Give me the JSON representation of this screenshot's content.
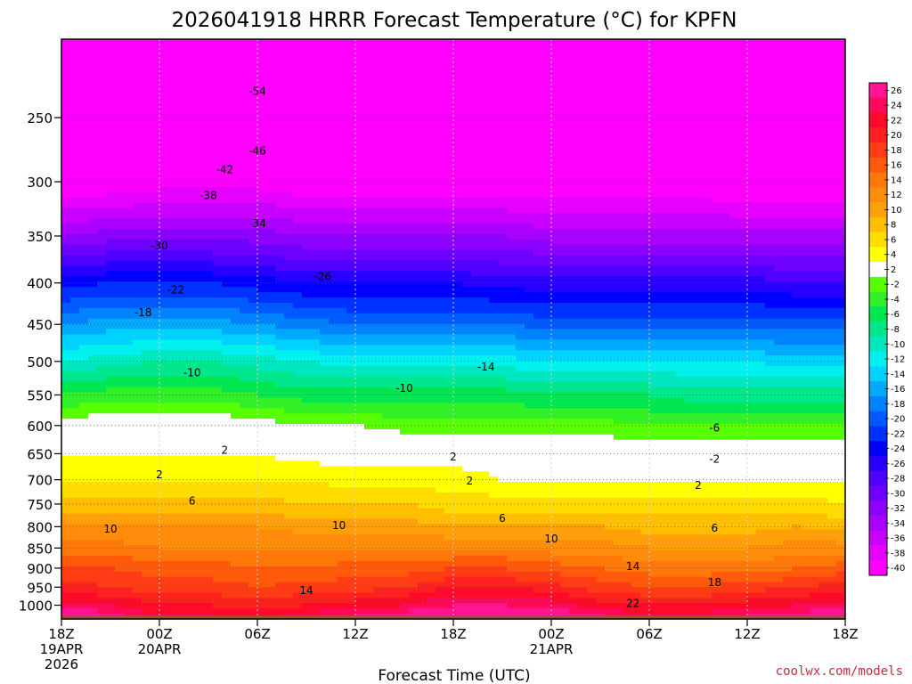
{
  "chart_data": {
    "type": "heatmap",
    "title": "2026041918 HRRR Forecast Temperature (°C) for KPFN",
    "xlabel": "Forecast Time (UTC)",
    "ylabel": "",
    "credit": "coolwx.com/models",
    "x_hours": [
      0,
      6,
      12,
      18,
      24,
      30,
      36,
      42,
      48
    ],
    "x_ticks": [
      {
        "hour": 0,
        "lines": [
          "18Z",
          "19APR",
          "2026"
        ]
      },
      {
        "hour": 6,
        "lines": [
          "00Z",
          "20APR"
        ]
      },
      {
        "hour": 12,
        "lines": [
          "06Z"
        ]
      },
      {
        "hour": 18,
        "lines": [
          "12Z"
        ]
      },
      {
        "hour": 24,
        "lines": [
          "18Z"
        ]
      },
      {
        "hour": 30,
        "lines": [
          "00Z",
          "21APR"
        ]
      },
      {
        "hour": 36,
        "lines": [
          "06Z"
        ]
      },
      {
        "hour": 42,
        "lines": [
          "12Z"
        ]
      },
      {
        "hour": 48,
        "lines": [
          "18Z"
        ]
      }
    ],
    "y_ticks": [
      250,
      300,
      350,
      400,
      450,
      500,
      550,
      600,
      650,
      700,
      750,
      800,
      850,
      900,
      950,
      1000
    ],
    "y_range_hpa": [
      200,
      1040
    ],
    "surface_hpa": 1030,
    "profile_levels_hpa": [
      200,
      250,
      300,
      350,
      400,
      450,
      500,
      550,
      600,
      650,
      700,
      750,
      800,
      850,
      900,
      950,
      1000,
      1030
    ],
    "profiles": [
      {
        "hour": 0,
        "temps": [
          -58,
          -49,
          -42,
          -34,
          -25,
          -18,
          -12,
          -6,
          -1,
          2,
          4,
          7,
          10,
          13,
          16,
          19,
          23,
          26
        ]
      },
      {
        "hour": 3,
        "temps": [
          -58,
          -49,
          -42,
          -33,
          -24,
          -17,
          -11,
          -5,
          0,
          2,
          4,
          7,
          10,
          13,
          16,
          18,
          22,
          25
        ]
      },
      {
        "hour": 6,
        "temps": [
          -58,
          -49,
          -41,
          -33,
          -24,
          -17,
          -10,
          -5,
          0,
          2,
          4,
          7,
          10,
          12,
          15,
          17,
          20,
          22
        ]
      },
      {
        "hour": 9,
        "temps": [
          -58,
          -49,
          -41,
          -33,
          -24,
          -17,
          -10,
          -5,
          0,
          2,
          4,
          7,
          10,
          12,
          15,
          17,
          20,
          22
        ]
      },
      {
        "hour": 12,
        "temps": [
          -57,
          -49,
          -41,
          -33,
          -25,
          -18,
          -11,
          -6,
          -1,
          2,
          4,
          7,
          10,
          12,
          14,
          16,
          19,
          21
        ]
      },
      {
        "hour": 15,
        "temps": [
          -57,
          -49,
          -42,
          -34,
          -26,
          -19,
          -12,
          -7,
          -2,
          1,
          4,
          6,
          9,
          12,
          14,
          17,
          20,
          23
        ]
      },
      {
        "hour": 18,
        "temps": [
          -57,
          -49,
          -42,
          -34,
          -26,
          -20,
          -13,
          -7,
          -2,
          1,
          3,
          6,
          9,
          12,
          15,
          17,
          21,
          24
        ]
      },
      {
        "hour": 21,
        "temps": [
          -57,
          -49,
          -42,
          -34,
          -26,
          -20,
          -13,
          -7,
          -3,
          1,
          3,
          6,
          9,
          12,
          15,
          18,
          22,
          25
        ]
      },
      {
        "hour": 24,
        "temps": [
          -57,
          -49,
          -42,
          -34,
          -26,
          -20,
          -13,
          -7,
          -3,
          1,
          3,
          5,
          8,
          12,
          16,
          20,
          24,
          27
        ]
      },
      {
        "hour": 27,
        "temps": [
          -57,
          -49,
          -42,
          -34,
          -27,
          -20,
          -13,
          -7,
          -3,
          1,
          2,
          5,
          8,
          12,
          16,
          20,
          24,
          27
        ]
      },
      {
        "hour": 30,
        "temps": [
          -57,
          -49,
          -42,
          -35,
          -27,
          -21,
          -14,
          -8,
          -3,
          0,
          2,
          5,
          8,
          11,
          15,
          19,
          23,
          26
        ]
      },
      {
        "hour": 33,
        "temps": [
          -58,
          -50,
          -42,
          -35,
          -27,
          -21,
          -14,
          -8,
          -3,
          0,
          2,
          5,
          8,
          11,
          14,
          17,
          21,
          24
        ]
      },
      {
        "hour": 36,
        "temps": [
          -58,
          -50,
          -42,
          -35,
          -27,
          -21,
          -14,
          -8,
          -4,
          0,
          2,
          5,
          7,
          10,
          13,
          16,
          20,
          22
        ]
      },
      {
        "hour": 39,
        "temps": [
          -58,
          -50,
          -42,
          -35,
          -27,
          -21,
          -14,
          -9,
          -4,
          0,
          2,
          5,
          7,
          10,
          13,
          16,
          20,
          23
        ]
      },
      {
        "hour": 42,
        "temps": [
          -58,
          -50,
          -43,
          -35,
          -27,
          -21,
          -14,
          -9,
          -4,
          0,
          2,
          5,
          7,
          10,
          13,
          17,
          21,
          24
        ]
      },
      {
        "hour": 45,
        "temps": [
          -58,
          -50,
          -43,
          -35,
          -28,
          -21,
          -15,
          -9,
          -4,
          0,
          2,
          5,
          8,
          11,
          14,
          18,
          22,
          25
        ]
      },
      {
        "hour": 48,
        "temps": [
          -58,
          -50,
          -43,
          -35,
          -28,
          -21,
          -15,
          -9,
          -4,
          0,
          2,
          4,
          7,
          11,
          15,
          19,
          23,
          26
        ]
      }
    ],
    "contour_labels": [
      {
        "text": "-54",
        "hour": 12,
        "hpa": 232
      },
      {
        "text": "-46",
        "hour": 12,
        "hpa": 275
      },
      {
        "text": "-42",
        "hour": 10,
        "hpa": 290
      },
      {
        "text": "-38",
        "hour": 9,
        "hpa": 312
      },
      {
        "text": "-34",
        "hour": 12,
        "hpa": 338
      },
      {
        "text": "-30",
        "hour": 6,
        "hpa": 360
      },
      {
        "text": "-26",
        "hour": 16,
        "hpa": 393
      },
      {
        "text": "-22",
        "hour": 7,
        "hpa": 408
      },
      {
        "text": "-18",
        "hour": 5,
        "hpa": 435
      },
      {
        "text": "-14",
        "hour": 26,
        "hpa": 508
      },
      {
        "text": "-10",
        "hour": 8,
        "hpa": 516
      },
      {
        "text": "-10",
        "hour": 21,
        "hpa": 540
      },
      {
        "text": "-6",
        "hour": 40,
        "hpa": 604
      },
      {
        "text": "-2",
        "hour": 40,
        "hpa": 660
      },
      {
        "text": "2",
        "hour": 10,
        "hpa": 644
      },
      {
        "text": "2",
        "hour": 24,
        "hpa": 656
      },
      {
        "text": "2",
        "hour": 6,
        "hpa": 690
      },
      {
        "text": "2",
        "hour": 25,
        "hpa": 702
      },
      {
        "text": "2",
        "hour": 39,
        "hpa": 711
      },
      {
        "text": "6",
        "hour": 8,
        "hpa": 744
      },
      {
        "text": "6",
        "hour": 27,
        "hpa": 781
      },
      {
        "text": "6",
        "hour": 40,
        "hpa": 803
      },
      {
        "text": "10",
        "hour": 3,
        "hpa": 805
      },
      {
        "text": "10",
        "hour": 17,
        "hpa": 797
      },
      {
        "text": "10",
        "hour": 30,
        "hpa": 828
      },
      {
        "text": "14",
        "hour": 15,
        "hpa": 959
      },
      {
        "text": "14",
        "hour": 35,
        "hpa": 896
      },
      {
        "text": "18",
        "hour": 40,
        "hpa": 938
      },
      {
        "text": "22",
        "hour": 35,
        "hpa": 995
      }
    ],
    "legend": {
      "placement": "right",
      "labels": [
        "26",
        "24",
        "22",
        "20",
        "18",
        "16",
        "14",
        "12",
        "10",
        "8",
        "6",
        "4",
        "2",
        "-2",
        "-4",
        "-6",
        "-8",
        "-10",
        "-12",
        "-14",
        "-16",
        "-18",
        "-20",
        "-22",
        "-24",
        "-26",
        "-28",
        "-30",
        "-32",
        "-34",
        "-36",
        "-38",
        "-40"
      ],
      "colors": [
        "#ff1493",
        "#ff0a5a",
        "#ff0a28",
        "#ff2020",
        "#ff3c14",
        "#ff5a0a",
        "#ff780a",
        "#ff8c0a",
        "#ffa00a",
        "#ffbe00",
        "#ffdc00",
        "#ffff00",
        "#ffffff",
        "#58ff00",
        "#32f028",
        "#00e650",
        "#00e68c",
        "#00e6be",
        "#00f0f0",
        "#00d2ff",
        "#00aaff",
        "#0082ff",
        "#005aff",
        "#0032ff",
        "#0000ff",
        "#2800ff",
        "#5000ff",
        "#6e00ff",
        "#8c00ff",
        "#aa00ff",
        "#c800ff",
        "#e600ff",
        "#ff00ff"
      ]
    }
  }
}
